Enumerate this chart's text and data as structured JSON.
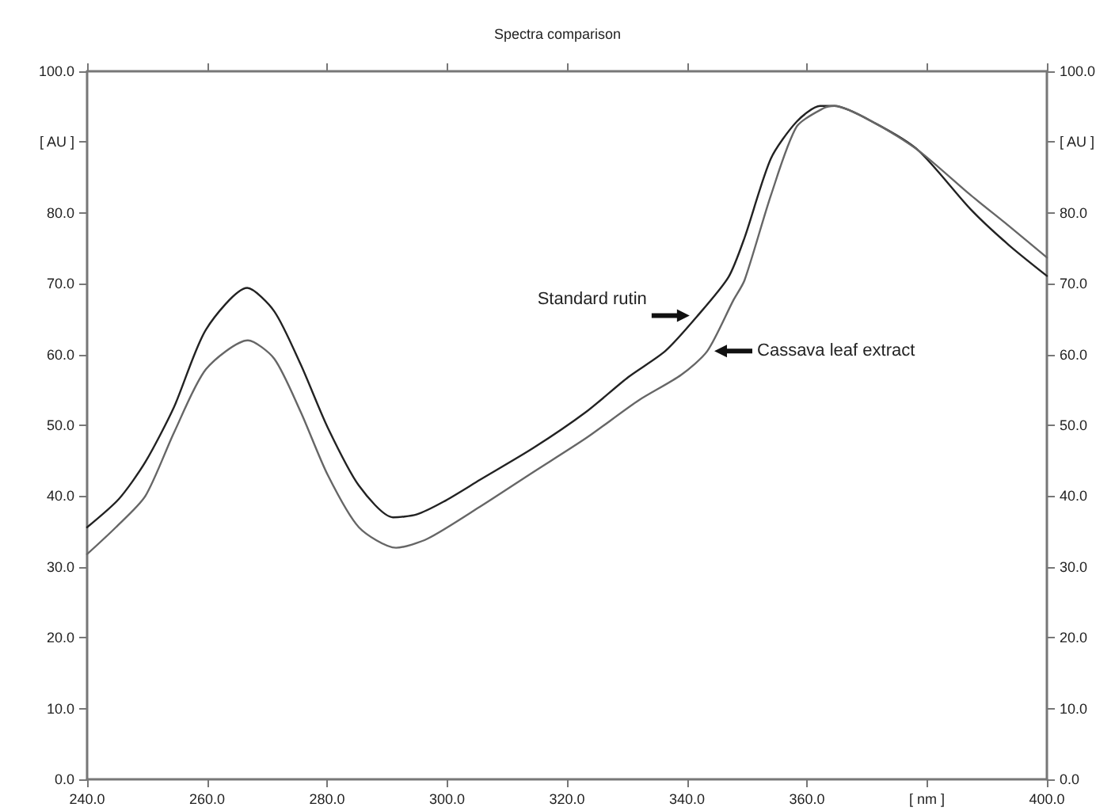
{
  "chart_data": {
    "type": "line",
    "title": "Spectra comparison",
    "xlim": [
      240,
      400
    ],
    "xticks": [
      {
        "value": 240,
        "label": "240.0"
      },
      {
        "value": 260,
        "label": "260.0"
      },
      {
        "value": 280,
        "label": "280.0"
      },
      {
        "value": 300,
        "label": "300.0"
      },
      {
        "value": 320,
        "label": "320.0"
      },
      {
        "value": 340,
        "label": "340.0"
      },
      {
        "value": 360,
        "label": "360.0"
      },
      {
        "value": 380,
        "label": "[ nm ]"
      },
      {
        "value": 400,
        "label": "400.0"
      }
    ],
    "ylim": [
      0,
      100
    ],
    "yticks": [
      {
        "value": 0,
        "label": "0.0"
      },
      {
        "value": 10,
        "label": "10.0"
      },
      {
        "value": 20,
        "label": "20.0"
      },
      {
        "value": 30,
        "label": "30.0"
      },
      {
        "value": 40,
        "label": "40.0"
      },
      {
        "value": 50,
        "label": "50.0"
      },
      {
        "value": 60,
        "label": "60.0"
      },
      {
        "value": 70,
        "label": "70.0"
      },
      {
        "value": 80,
        "label": "80.0"
      },
      {
        "value": 90,
        "label": "[ AU ]"
      },
      {
        "value": 100,
        "label": "100.0"
      }
    ],
    "y2lim": [
      0,
      100
    ],
    "y2ticks": [
      {
        "value": 0,
        "label": "0.0"
      },
      {
        "value": 10,
        "label": "10.0"
      },
      {
        "value": 20,
        "label": "20.0"
      },
      {
        "value": 30,
        "label": "30.0"
      },
      {
        "value": 40,
        "label": "40.0"
      },
      {
        "value": 50,
        "label": "50.0"
      },
      {
        "value": 60,
        "label": "60.0"
      },
      {
        "value": 70,
        "label": "70.0"
      },
      {
        "value": 80,
        "label": "80.0"
      },
      {
        "value": 90,
        "label": "[ AU ]"
      },
      {
        "value": 100,
        "label": "100.0"
      }
    ],
    "grid": false,
    "marker": "none",
    "line_style": "solid",
    "series": [
      {
        "color": "#222222",
        "x": [
          240,
          245.3,
          249.7,
          254.5,
          259.8,
          266.7,
          271.2,
          275.6,
          280.1,
          285.3,
          291,
          294.9,
          299.4,
          305.5,
          314.4,
          323.2,
          330.2,
          336.4,
          341.6,
          346.9,
          349.6,
          354,
          358.3,
          362.2,
          364.6,
          371.5,
          378.6,
          387.3,
          393.6,
          400
        ],
        "values": [
          35.6,
          39.6,
          44.8,
          52.6,
          63.5,
          69.4,
          66.1,
          58.6,
          49.7,
          41.5,
          37,
          37.4,
          39.2,
          42.3,
          46.8,
          51.9,
          56.8,
          60.5,
          65.3,
          70.9,
          76.5,
          87.7,
          92.9,
          95.1,
          95.1,
          92.6,
          88.8,
          80.5,
          75.5,
          71.1
        ]
      },
      {
        "color": "#666666",
        "x": [
          240,
          244.8,
          249.7,
          254.5,
          259.8,
          266.8,
          271.2,
          275.6,
          280.1,
          285.3,
          291.5,
          296.8,
          305.5,
          314.4,
          323.2,
          331.9,
          339,
          343.4,
          347.7,
          349.6,
          354,
          358.3,
          362.8,
          364.6,
          371.5,
          378.6,
          387.3,
          393.6,
          400
        ],
        "values": [
          31.8,
          35.6,
          40,
          49,
          57.9,
          62,
          59.4,
          51.9,
          43,
          35.6,
          32.7,
          34,
          38.5,
          43.4,
          48.2,
          53.5,
          57.1,
          60.5,
          67.6,
          70.5,
          82.5,
          92.2,
          94.8,
          95.1,
          92.6,
          88.8,
          82.5,
          78.2,
          73.7
        ]
      }
    ],
    "annotations": [
      {
        "text": "Standard rutin",
        "x": 341.5,
        "y": 65.5
      },
      {
        "text": "Cassava leaf extract",
        "x": 343.5,
        "y": 60.5
      }
    ]
  }
}
